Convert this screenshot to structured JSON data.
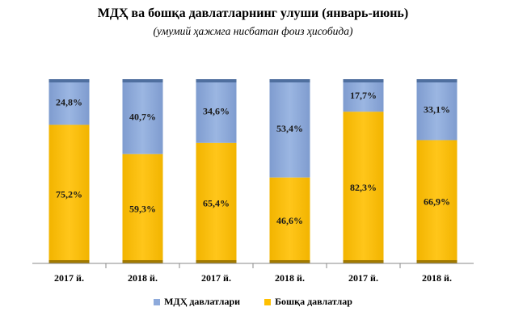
{
  "title": "МДҲ ва бошқа давлатларнинг улуши (январь-июнь)",
  "subtitle": "(умумий ҳажмга нисбатан фоиз ҳисобида)",
  "colors": {
    "mdh": "#8EAADB",
    "other": "#FFC000"
  },
  "chart_data": {
    "type": "bar",
    "stacked": true,
    "percent_stacked": true,
    "categories": [
      "2017 й.",
      "2018 й.",
      "2017 й.",
      "2018 й.",
      "2017 й.",
      "2018 й."
    ],
    "series": [
      {
        "name": "Бошқа давлатлар",
        "values": [
          75.2,
          59.3,
          65.4,
          46.6,
          82.3,
          66.9
        ],
        "labels": [
          "75,2%",
          "59,3%",
          "65,4%",
          "46,6%",
          "82,3%",
          "66,9%"
        ]
      },
      {
        "name": "МДҲ давлатлари",
        "values": [
          24.8,
          40.7,
          34.6,
          53.4,
          17.7,
          33.1
        ],
        "labels": [
          "24,8%",
          "40,7%",
          "34,6%",
          "53,4%",
          "17,7%",
          "33,1%"
        ]
      }
    ],
    "ylim": [
      0,
      100
    ],
    "grid": false,
    "legend": "bottom"
  }
}
